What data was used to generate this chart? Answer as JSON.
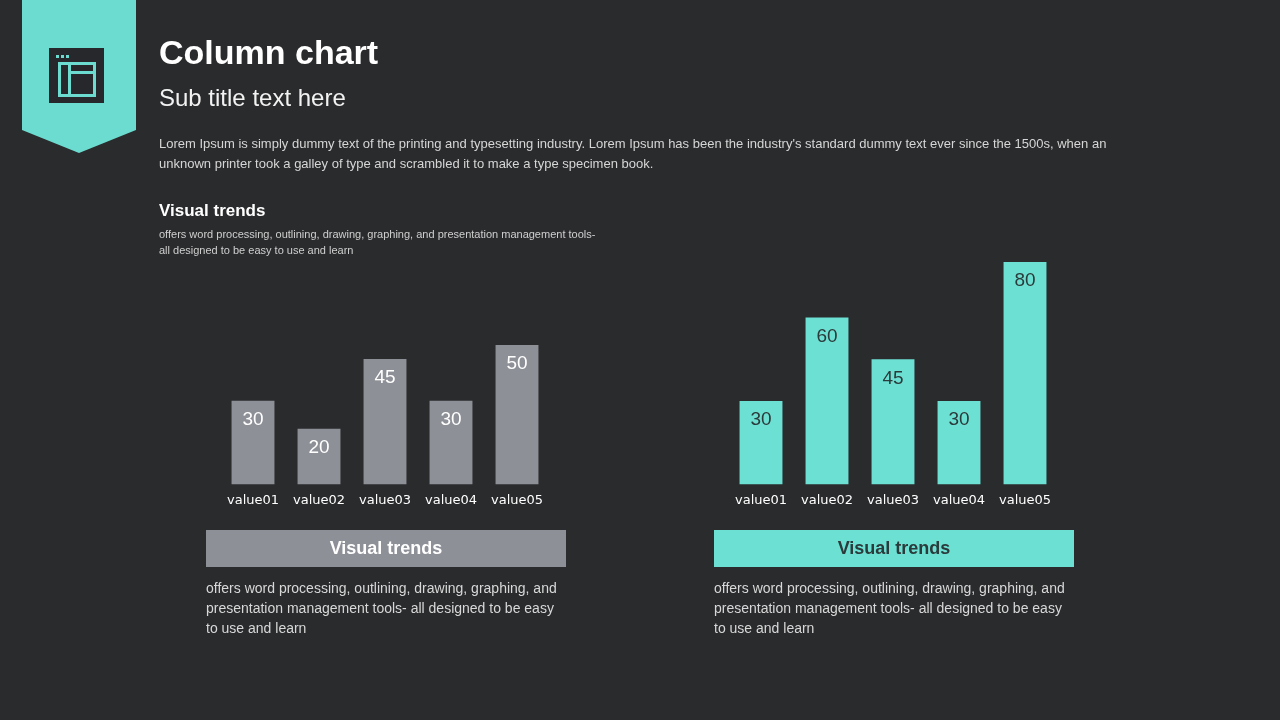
{
  "chart_data": [
    {
      "type": "other",
      "title": "Column chart",
      "subtitle": "Sub title text here",
      "annotations": [
        "Lorem Ipsum is simply dummy text of the printing and typesetting industry. Lorem Ipsum has been the industry's standard dummy text ever since the 1500s, when an unknown printer took a galley of type and scrambled it to make a type specimen book.",
        "Visual trends",
        "offers word processing, outlining, drawing, graphing, and presentation management tools- all designed to be easy to use and learn"
      ]
    },
    {
      "type": "bar",
      "title": "Visual trends",
      "categories": [
        "value01",
        "value02",
        "value03",
        "value04",
        "value05"
      ],
      "values": [
        30,
        20,
        45,
        30,
        50
      ],
      "color": "#8e9098",
      "tick_labels": "x",
      "data_labels": true,
      "annotations": [
        "offers word processing, outlining, drawing, graphing, and presentation management tools- all designed to be easy to use and learn"
      ]
    },
    {
      "type": "bar",
      "title": "Visual trends",
      "categories": [
        "value01",
        "value02",
        "value03",
        "value04",
        "value05"
      ],
      "values": [
        30,
        60,
        45,
        30,
        80
      ],
      "color": "#6de0d4",
      "ylim": [
        0,
        80
      ],
      "tick_labels": "x",
      "data_labels": true,
      "annotations": [
        "offers word processing, outlining, drawing, graphing, and presentation management tools- all designed to be easy to use and learn"
      ]
    }
  ]
}
